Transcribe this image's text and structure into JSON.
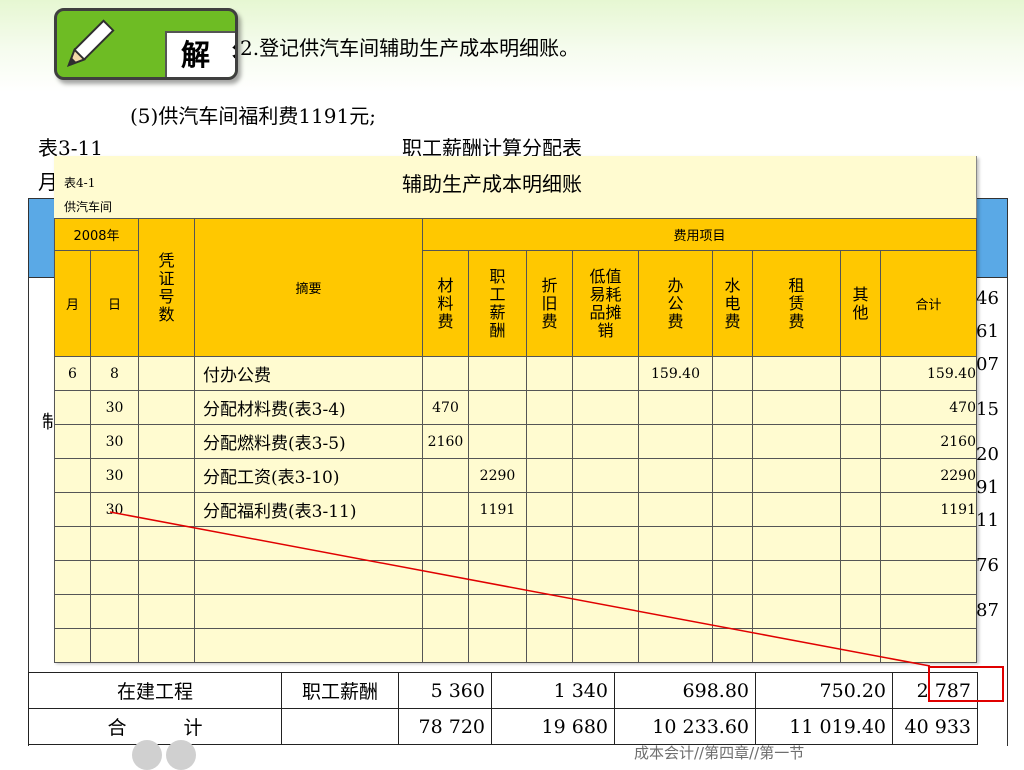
{
  "badge": {
    "label": "解 答",
    "icon": "pencil-icon"
  },
  "heading": "2.登记供汽车间辅助生产成本明细账。",
  "subheading": "(5)供汽车间福利费1191元;",
  "back_table": {
    "code": "表3-11",
    "title": "职工薪酬计算分配表",
    "left_char": "月",
    "mid_char": "制",
    "right_edge": [
      "46",
      "61",
      "07",
      "15",
      "20",
      "91",
      "11",
      "76",
      "87"
    ],
    "rows": [
      {
        "col1": "在建工程",
        "col2": "职工薪酬",
        "v1": "5 360",
        "v2": "1 340",
        "v3": "698.80",
        "v4": "750.20",
        "v5": "2 787"
      },
      {
        "col1": "合　　　计",
        "col2": "",
        "v1": "78 720",
        "v2": "19 680",
        "v3": "10 233.60",
        "v4": "11 019.40",
        "v5": "40 933"
      }
    ]
  },
  "ledger": {
    "code": "表4-1",
    "title": "辅助生产成本明细账",
    "dept": "供汽车间",
    "headers": {
      "year": "2008年",
      "month": "月",
      "day": "日",
      "voucher": "凭证号数",
      "summary": "摘要",
      "cost_items": "费用项目",
      "materials": "材料费",
      "salary": "职工薪酬",
      "depreciation": "折旧费",
      "low_value": "低值易耗品摊销",
      "office": "办公费",
      "utilities": "水电费",
      "rent": "租赁费",
      "other": "其他",
      "total": "合计"
    },
    "rows": [
      {
        "month": "6",
        "day": "8",
        "summary": "付办公费",
        "materials": "",
        "salary": "",
        "office": "159.40",
        "total": "159.40"
      },
      {
        "month": "",
        "day": "30",
        "summary": "分配材料费(表3-4)",
        "materials": "470",
        "salary": "",
        "office": "",
        "total": "470"
      },
      {
        "month": "",
        "day": "30",
        "summary": "分配燃料费(表3-5)",
        "materials": "2160",
        "salary": "",
        "office": "",
        "total": "2160"
      },
      {
        "month": "",
        "day": "30",
        "summary": "分配工资(表3-10)",
        "materials": "",
        "salary": "2290",
        "office": "",
        "total": "2290"
      },
      {
        "month": "",
        "day": "30",
        "summary": "分配福利费(表3-11)",
        "materials": "",
        "salary": "1191",
        "office": "",
        "total": "1191"
      }
    ],
    "empty_rows": 4
  },
  "footer": "成本会计//第四章//第一节",
  "colors": {
    "accent": "#ffc800",
    "panel": "#fffbd0",
    "badge": "#6ebc24",
    "highlight": "#e00000"
  }
}
